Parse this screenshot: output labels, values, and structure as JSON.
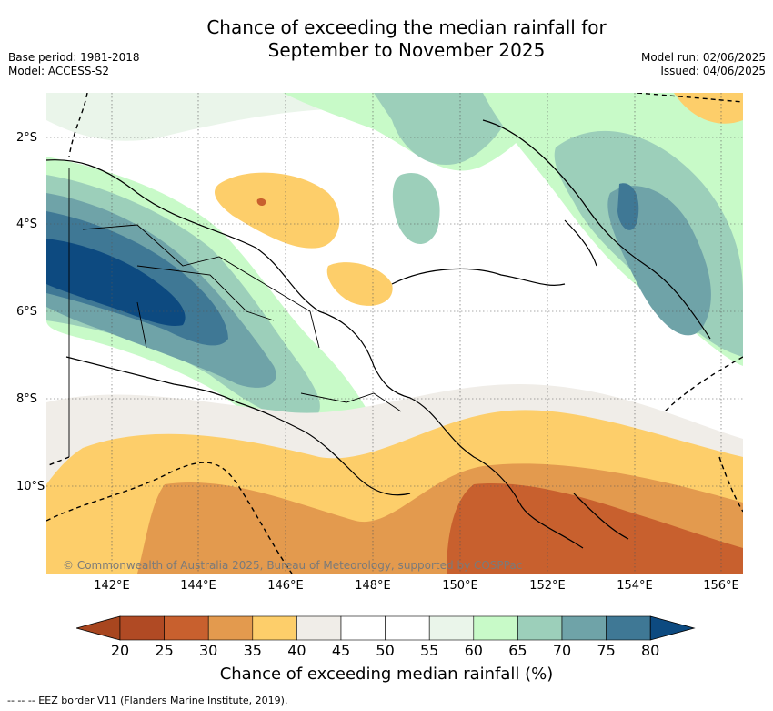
{
  "title_line1": "Chance of exceeding the median rainfall for",
  "title_line2": "September to November 2025",
  "base_period": "Base period: 1981-2018",
  "model": "Model: ACCESS-S2",
  "model_run": "Model run: 02/06/2025",
  "issued": "Issued: 04/06/2025",
  "copyright": "© Commonwealth of Australia 2025, Bureau of Meteorology, supported by COSPPac",
  "lat_labels": [
    "2°S",
    "4°S",
    "6°S",
    "8°S",
    "10°S"
  ],
  "lon_labels": [
    "142°E",
    "144°E",
    "146°E",
    "148°E",
    "150°E",
    "152°E",
    "154°E",
    "156°E"
  ],
  "colorbar": {
    "ticks": [
      "20",
      "25",
      "30",
      "35",
      "40",
      "45",
      "50",
      "55",
      "60",
      "65",
      "70",
      "75",
      "80"
    ],
    "colors": [
      "#a8461f",
      "#b04a24",
      "#c8602e",
      "#e39a4e",
      "#fdce6a",
      "#f0ede8",
      "#ffffff",
      "#ffffff",
      "#eaf5ea",
      "#c8fac8",
      "#9ccfba",
      "#6fa3a8",
      "#3f7895",
      "#0d4a80"
    ],
    "label": "Chance of exceeding median rainfall (%)"
  },
  "footnote": "-- -- -- EEZ border V11 (Flanders Marine Institute, 2019)."
}
